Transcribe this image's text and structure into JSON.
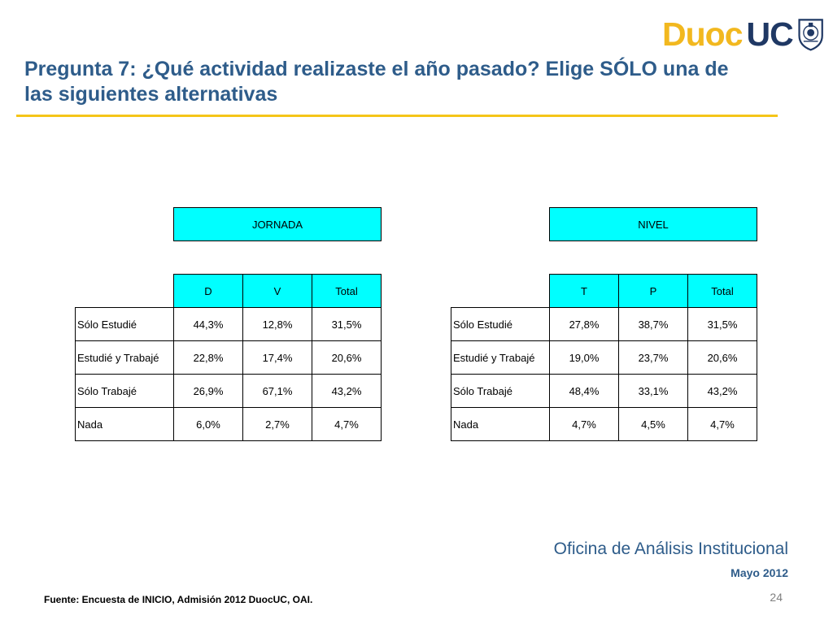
{
  "logo": {
    "duoc": "Duoc",
    "uc": "UC"
  },
  "title": "Pregunta 7: ¿Qué actividad realizaste el año pasado? Elige SÓLO una de las siguientes alternativas",
  "colors": {
    "title": "#2e5c8a",
    "accent_rule": "#f5c518",
    "header_fill": "#00ffff"
  },
  "table_jornada": {
    "group": "JORNADA",
    "columns": [
      "D",
      "V",
      "Total"
    ],
    "rows": [
      {
        "label": "Sólo Estudié",
        "values": [
          "44,3%",
          "12,8%",
          "31,5%"
        ]
      },
      {
        "label": "Estudié y Trabajé",
        "values": [
          "22,8%",
          "17,4%",
          "20,6%"
        ]
      },
      {
        "label": "Sólo Trabajé",
        "values": [
          "26,9%",
          "67,1%",
          "43,2%"
        ]
      },
      {
        "label": "Nada",
        "values": [
          "6,0%",
          "2,7%",
          "4,7%"
        ]
      }
    ]
  },
  "table_nivel": {
    "group": "NIVEL",
    "columns": [
      "T",
      "P",
      "Total"
    ],
    "rows": [
      {
        "label": "Sólo Estudié",
        "values": [
          "27,8%",
          "38,7%",
          "31,5%"
        ]
      },
      {
        "label": "Estudié y Trabajé",
        "values": [
          "19,0%",
          "23,7%",
          "20,6%"
        ]
      },
      {
        "label": "Sólo Trabajé",
        "values": [
          "48,4%",
          "33,1%",
          "43,2%"
        ]
      },
      {
        "label": "Nada",
        "values": [
          "4,7%",
          "4,5%",
          "4,7%"
        ]
      }
    ]
  },
  "footer": {
    "office": "Oficina de Análisis Institucional",
    "date": "Mayo 2012",
    "page": "24",
    "source": "Fuente: Encuesta de INICIO, Admisión 2012 DuocUC, OAI."
  }
}
